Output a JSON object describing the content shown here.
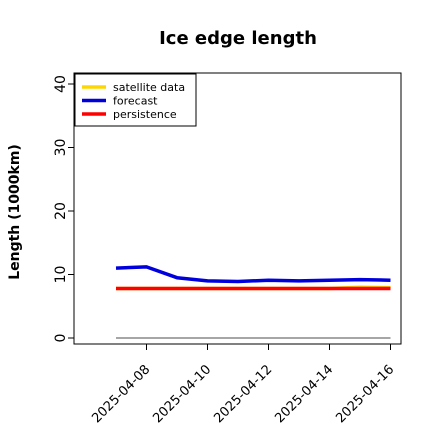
{
  "chart_data": {
    "type": "line",
    "title": "Ice edge length",
    "xlabel": "",
    "ylabel": "Length (1000km)",
    "ylim": [
      0,
      40
    ],
    "yticks": [
      0,
      10,
      20,
      30,
      40
    ],
    "xticks": [
      "2025-04-08",
      "2025-04-10",
      "2025-04-12",
      "2025-04-14",
      "2025-04-16"
    ],
    "xtick_highlight": "2025-04-08",
    "xtick_highlight_color": "#228b22",
    "x": [
      "2025-04-07",
      "2025-04-08",
      "2025-04-09",
      "2025-04-10",
      "2025-04-11",
      "2025-04-12",
      "2025-04-13",
      "2025-04-14",
      "2025-04-15",
      "2025-04-16"
    ],
    "series": [
      {
        "name": "satellite data",
        "color": "#ffd700",
        "values": [
          7.8,
          7.8,
          7.8,
          7.8,
          7.8,
          7.8,
          7.8,
          7.8,
          8.0,
          7.9
        ]
      },
      {
        "name": "forecast",
        "color": "#0000dd",
        "values": [
          11.0,
          11.2,
          9.5,
          9.0,
          8.9,
          9.1,
          9.0,
          9.1,
          9.2,
          9.1
        ]
      },
      {
        "name": "persistence",
        "color": "#ff0000",
        "values": [
          7.8,
          7.8,
          7.8,
          7.8,
          7.8,
          7.8,
          7.8,
          7.8,
          7.8,
          7.8
        ]
      }
    ],
    "reference_line": {
      "value": 0,
      "color": "#888888"
    },
    "legend_position": "top-left",
    "grid": false
  }
}
